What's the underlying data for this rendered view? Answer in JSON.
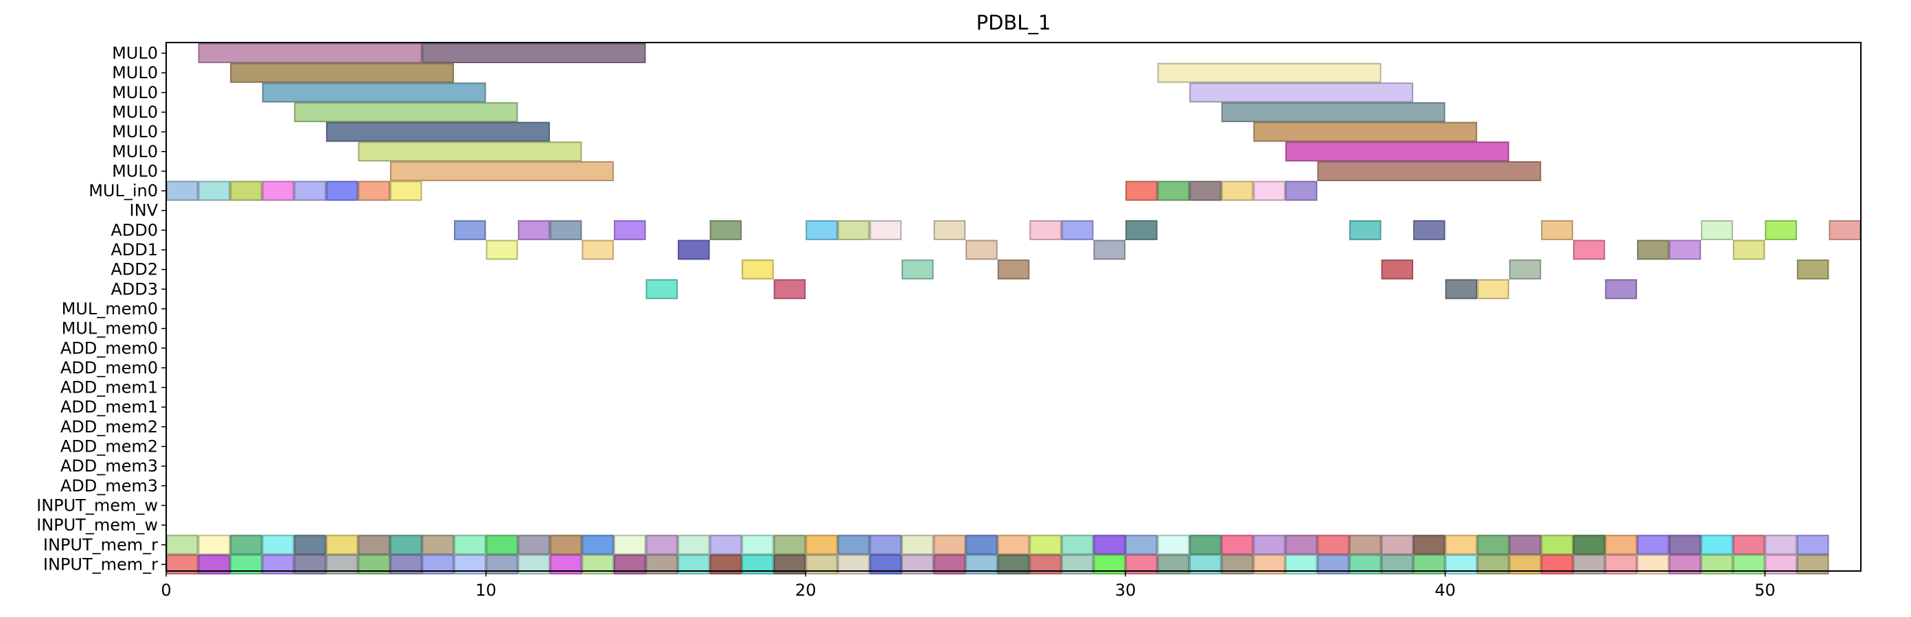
{
  "chart_data": {
    "type": "gantt",
    "title": "PDBL_1",
    "xlabel": "",
    "ylabel": "",
    "xlim": [
      0,
      53
    ],
    "xticks": [
      "0",
      "10",
      "20",
      "30",
      "40",
      "50"
    ],
    "xtick_values": [
      0,
      10,
      20,
      30,
      40,
      50
    ],
    "grid": false,
    "rows": [
      "MUL0",
      "MUL0",
      "MUL0",
      "MUL0",
      "MUL0",
      "MUL0",
      "MUL0",
      "MUL_in0",
      "INV",
      "ADD0",
      "ADD1",
      "ADD2",
      "ADD3",
      "MUL_mem0",
      "MUL_mem0",
      "ADD_mem0",
      "ADD_mem0",
      "ADD_mem1",
      "ADD_mem1",
      "ADD_mem2",
      "ADD_mem2",
      "ADD_mem3",
      "ADD_mem3",
      "INPUT_mem_w",
      "INPUT_mem_w",
      "INPUT_mem_r",
      "INPUT_mem_r"
    ],
    "tasks": [
      {
        "row": 0,
        "start": 1,
        "end": 8,
        "color": "#c594b4"
      },
      {
        "row": 0,
        "start": 8,
        "end": 15,
        "color": "#927c93"
      },
      {
        "row": 1,
        "start": 2,
        "end": 9,
        "color": "#b09a6c"
      },
      {
        "row": 2,
        "start": 3,
        "end": 10,
        "color": "#7fb1c8"
      },
      {
        "row": 3,
        "start": 4,
        "end": 11,
        "color": "#b0d896"
      },
      {
        "row": 4,
        "start": 5,
        "end": 12,
        "color": "#6c7f9c"
      },
      {
        "row": 5,
        "start": 6,
        "end": 13,
        "color": "#d2e491"
      },
      {
        "row": 6,
        "start": 7,
        "end": 14,
        "color": "#ebbe8d"
      },
      {
        "row": 1,
        "start": 31,
        "end": 38,
        "color": "#f5efc0"
      },
      {
        "row": 2,
        "start": 32,
        "end": 39,
        "color": "#d4c6f2"
      },
      {
        "row": 3,
        "start": 33,
        "end": 40,
        "color": "#8da9ad"
      },
      {
        "row": 4,
        "start": 34,
        "end": 41,
        "color": "#c9a172"
      },
      {
        "row": 5,
        "start": 35,
        "end": 42,
        "color": "#d564c0"
      },
      {
        "row": 6,
        "start": 36,
        "end": 43,
        "color": "#b88a7e"
      },
      {
        "row": 7,
        "start": 0,
        "end": 1,
        "color": "#a8c6e5"
      },
      {
        "row": 7,
        "start": 1,
        "end": 2,
        "color": "#a9e0e0"
      },
      {
        "row": 7,
        "start": 2,
        "end": 3,
        "color": "#c8db73"
      },
      {
        "row": 7,
        "start": 3,
        "end": 4,
        "color": "#f590ec"
      },
      {
        "row": 7,
        "start": 4,
        "end": 5,
        "color": "#b3b4f5"
      },
      {
        "row": 7,
        "start": 5,
        "end": 6,
        "color": "#8389f5"
      },
      {
        "row": 7,
        "start": 6,
        "end": 7,
        "color": "#f5a989"
      },
      {
        "row": 7,
        "start": 7,
        "end": 8,
        "color": "#f8ee87"
      },
      {
        "row": 7,
        "start": 30,
        "end": 31,
        "color": "#f57f73"
      },
      {
        "row": 7,
        "start": 31,
        "end": 32,
        "color": "#7fc27e"
      },
      {
        "row": 7,
        "start": 32,
        "end": 33,
        "color": "#998689"
      },
      {
        "row": 7,
        "start": 33,
        "end": 34,
        "color": "#f3dc91"
      },
      {
        "row": 7,
        "start": 34,
        "end": 35,
        "color": "#f8d2ea"
      },
      {
        "row": 7,
        "start": 35,
        "end": 36,
        "color": "#a594d8"
      },
      {
        "row": 9,
        "start": 9,
        "end": 10,
        "color": "#8ea3e3"
      },
      {
        "row": 9,
        "start": 11,
        "end": 12,
        "color": "#c293e1"
      },
      {
        "row": 9,
        "start": 12,
        "end": 13,
        "color": "#91a6bc"
      },
      {
        "row": 9,
        "start": 14,
        "end": 15,
        "color": "#b58af4"
      },
      {
        "row": 9,
        "start": 17,
        "end": 18,
        "color": "#8fa980"
      },
      {
        "row": 9,
        "start": 20,
        "end": 21,
        "color": "#82d2f3"
      },
      {
        "row": 9,
        "start": 21,
        "end": 22,
        "color": "#d5e2a6"
      },
      {
        "row": 9,
        "start": 22,
        "end": 23,
        "color": "#f7e7e9"
      },
      {
        "row": 9,
        "start": 24,
        "end": 25,
        "color": "#e9dcbf"
      },
      {
        "row": 9,
        "start": 27,
        "end": 28,
        "color": "#f8c8d9"
      },
      {
        "row": 9,
        "start": 28,
        "end": 29,
        "color": "#a4aaf3"
      },
      {
        "row": 9,
        "start": 30,
        "end": 31,
        "color": "#6a9191"
      },
      {
        "row": 9,
        "start": 37,
        "end": 38,
        "color": "#6ccbc7"
      },
      {
        "row": 9,
        "start": 39,
        "end": 40,
        "color": "#7b7fb0"
      },
      {
        "row": 9,
        "start": 43,
        "end": 44,
        "color": "#f0c88f"
      },
      {
        "row": 9,
        "start": 48,
        "end": 49,
        "color": "#d6f5cd"
      },
      {
        "row": 9,
        "start": 50,
        "end": 51,
        "color": "#adf068"
      },
      {
        "row": 9,
        "start": 52,
        "end": 53,
        "color": "#eaa9a3"
      },
      {
        "row": 10,
        "start": 10,
        "end": 11,
        "color": "#eef59a"
      },
      {
        "row": 10,
        "start": 13,
        "end": 14,
        "color": "#f8dc9c"
      },
      {
        "row": 10,
        "start": 16,
        "end": 17,
        "color": "#6f6dc0"
      },
      {
        "row": 10,
        "start": 25,
        "end": 26,
        "color": "#e7cab2"
      },
      {
        "row": 10,
        "start": 29,
        "end": 30,
        "color": "#abb0c3"
      },
      {
        "row": 10,
        "start": 44,
        "end": 45,
        "color": "#f48caa"
      },
      {
        "row": 10,
        "start": 46,
        "end": 47,
        "color": "#a2a17a"
      },
      {
        "row": 10,
        "start": 47,
        "end": 48,
        "color": "#c99ae4"
      },
      {
        "row": 10,
        "start": 49,
        "end": 50,
        "color": "#e3e68e"
      },
      {
        "row": 11,
        "start": 18,
        "end": 19,
        "color": "#f8e879"
      },
      {
        "row": 11,
        "start": 23,
        "end": 24,
        "color": "#a0d8be"
      },
      {
        "row": 11,
        "start": 26,
        "end": 27,
        "color": "#b99a7d"
      },
      {
        "row": 11,
        "start": 38,
        "end": 39,
        "color": "#cd6c73"
      },
      {
        "row": 11,
        "start": 42,
        "end": 43,
        "color": "#b0c3b0"
      },
      {
        "row": 11,
        "start": 51,
        "end": 52,
        "color": "#b2ad73"
      },
      {
        "row": 12,
        "start": 15,
        "end": 16,
        "color": "#71e7cf"
      },
      {
        "row": 12,
        "start": 19,
        "end": 20,
        "color": "#d77089"
      },
      {
        "row": 12,
        "start": 40,
        "end": 41,
        "color": "#7c8790"
      },
      {
        "row": 12,
        "start": 41,
        "end": 42,
        "color": "#f5e095"
      },
      {
        "row": 12,
        "start": 45,
        "end": 46,
        "color": "#a98dce"
      },
      {
        "row": 25,
        "start": 0,
        "end": 1,
        "color": "#c4e6a8"
      },
      {
        "row": 25,
        "start": 1,
        "end": 2,
        "color": "#fef9c2"
      },
      {
        "row": 25,
        "start": 2,
        "end": 3,
        "color": "#6dc08f"
      },
      {
        "row": 25,
        "start": 3,
        "end": 4,
        "color": "#8ff1f0"
      },
      {
        "row": 25,
        "start": 4,
        "end": 5,
        "color": "#6e8499"
      },
      {
        "row": 25,
        "start": 5,
        "end": 6,
        "color": "#eddb77"
      },
      {
        "row": 25,
        "start": 6,
        "end": 7,
        "color": "#a9998b"
      },
      {
        "row": 25,
        "start": 7,
        "end": 8,
        "color": "#63b8a7"
      },
      {
        "row": 25,
        "start": 8,
        "end": 9,
        "color": "#bbac92"
      },
      {
        "row": 25,
        "start": 9,
        "end": 10,
        "color": "#99f3c6"
      },
      {
        "row": 25,
        "start": 10,
        "end": 11,
        "color": "#64e077"
      },
      {
        "row": 25,
        "start": 11,
        "end": 12,
        "color": "#a5a1b4"
      },
      {
        "row": 25,
        "start": 12,
        "end": 13,
        "color": "#c09a70"
      },
      {
        "row": 25,
        "start": 13,
        "end": 14,
        "color": "#6c9de8"
      },
      {
        "row": 25,
        "start": 14,
        "end": 15,
        "color": "#eafad9"
      },
      {
        "row": 25,
        "start": 15,
        "end": 16,
        "color": "#c9a6d7"
      },
      {
        "row": 25,
        "start": 16,
        "end": 17,
        "color": "#cdf0da"
      },
      {
        "row": 25,
        "start": 17,
        "end": 18,
        "color": "#c0b7f1"
      },
      {
        "row": 25,
        "start": 18,
        "end": 19,
        "color": "#befae4"
      },
      {
        "row": 25,
        "start": 19,
        "end": 20,
        "color": "#a8c18a"
      },
      {
        "row": 25,
        "start": 20,
        "end": 21,
        "color": "#f4c16a"
      },
      {
        "row": 25,
        "start": 21,
        "end": 22,
        "color": "#7fa4d4"
      },
      {
        "row": 25,
        "start": 22,
        "end": 23,
        "color": "#95a0e6"
      },
      {
        "row": 25,
        "start": 23,
        "end": 24,
        "color": "#e4edc8"
      },
      {
        "row": 25,
        "start": 24,
        "end": 25,
        "color": "#edbd9c"
      },
      {
        "row": 25,
        "start": 25,
        "end": 26,
        "color": "#6f8fd3"
      },
      {
        "row": 25,
        "start": 26,
        "end": 27,
        "color": "#f6c094"
      },
      {
        "row": 25,
        "start": 27,
        "end": 28,
        "color": "#d6f07a"
      },
      {
        "row": 25,
        "start": 28,
        "end": 29,
        "color": "#97e6c9"
      },
      {
        "row": 25,
        "start": 29,
        "end": 30,
        "color": "#9867ea"
      },
      {
        "row": 25,
        "start": 30,
        "end": 31,
        "color": "#95b3df"
      },
      {
        "row": 25,
        "start": 31,
        "end": 32,
        "color": "#d9fbf6"
      },
      {
        "row": 25,
        "start": 32,
        "end": 33,
        "color": "#65ae84"
      },
      {
        "row": 25,
        "start": 33,
        "end": 34,
        "color": "#f6799e"
      },
      {
        "row": 25,
        "start": 34,
        "end": 35,
        "color": "#c5a0e1"
      },
      {
        "row": 25,
        "start": 35,
        "end": 36,
        "color": "#c086c0"
      },
      {
        "row": 25,
        "start": 36,
        "end": 37,
        "color": "#f27e88"
      },
      {
        "row": 25,
        "start": 37,
        "end": 38,
        "color": "#c5a392"
      },
      {
        "row": 25,
        "start": 38,
        "end": 39,
        "color": "#d2aeb4"
      },
      {
        "row": 25,
        "start": 39,
        "end": 40,
        "color": "#8f6e62"
      },
      {
        "row": 25,
        "start": 40,
        "end": 41,
        "color": "#f9d187"
      },
      {
        "row": 25,
        "start": 41,
        "end": 42,
        "color": "#7ab77e"
      },
      {
        "row": 25,
        "start": 42,
        "end": 43,
        "color": "#a77ca2"
      },
      {
        "row": 25,
        "start": 43,
        "end": 44,
        "color": "#b5e66a"
      },
      {
        "row": 25,
        "start": 44,
        "end": 45,
        "color": "#5c8e5c"
      },
      {
        "row": 25,
        "start": 45,
        "end": 46,
        "color": "#f5b57f"
      },
      {
        "row": 25,
        "start": 46,
        "end": 47,
        "color": "#9f8bf5"
      },
      {
        "row": 25,
        "start": 47,
        "end": 48,
        "color": "#8e76b0"
      },
      {
        "row": 25,
        "start": 48,
        "end": 49,
        "color": "#6ee8f4"
      },
      {
        "row": 25,
        "start": 49,
        "end": 50,
        "color": "#ee8098"
      },
      {
        "row": 25,
        "start": 50,
        "end": 51,
        "color": "#dcc1e8"
      },
      {
        "row": 25,
        "start": 51,
        "end": 52,
        "color": "#a6a6f2"
      },
      {
        "row": 26,
        "start": 0,
        "end": 1,
        "color": "#ee8484"
      },
      {
        "row": 26,
        "start": 1,
        "end": 2,
        "color": "#c062d9"
      },
      {
        "row": 26,
        "start": 2,
        "end": 3,
        "color": "#6cec9a"
      },
      {
        "row": 26,
        "start": 3,
        "end": 4,
        "color": "#ab97f5"
      },
      {
        "row": 26,
        "start": 4,
        "end": 5,
        "color": "#8d8baa"
      },
      {
        "row": 26,
        "start": 5,
        "end": 6,
        "color": "#b2bbb9"
      },
      {
        "row": 26,
        "start": 6,
        "end": 7,
        "color": "#8dc883"
      },
      {
        "row": 26,
        "start": 7,
        "end": 8,
        "color": "#8f8fc1"
      },
      {
        "row": 26,
        "start": 8,
        "end": 9,
        "color": "#a3a9ef"
      },
      {
        "row": 26,
        "start": 9,
        "end": 10,
        "color": "#b6c9f8"
      },
      {
        "row": 26,
        "start": 10,
        "end": 11,
        "color": "#9ca9c7"
      },
      {
        "row": 26,
        "start": 11,
        "end": 12,
        "color": "#bde4df"
      },
      {
        "row": 26,
        "start": 12,
        "end": 13,
        "color": "#de6fe7"
      },
      {
        "row": 26,
        "start": 13,
        "end": 14,
        "color": "#bee9a0"
      },
      {
        "row": 26,
        "start": 14,
        "end": 15,
        "color": "#b0699d"
      },
      {
        "row": 26,
        "start": 15,
        "end": 16,
        "color": "#b3a499"
      },
      {
        "row": 26,
        "start": 16,
        "end": 17,
        "color": "#8ae6d8"
      },
      {
        "row": 26,
        "start": 17,
        "end": 18,
        "color": "#a56659"
      },
      {
        "row": 26,
        "start": 18,
        "end": 19,
        "color": "#5fe1d6"
      },
      {
        "row": 26,
        "start": 19,
        "end": 20,
        "color": "#826e62"
      },
      {
        "row": 26,
        "start": 20,
        "end": 21,
        "color": "#d6cfa0"
      },
      {
        "row": 26,
        "start": 21,
        "end": 22,
        "color": "#e1dcc8"
      },
      {
        "row": 26,
        "start": 22,
        "end": 23,
        "color": "#6c79d9"
      },
      {
        "row": 26,
        "start": 23,
        "end": 24,
        "color": "#cebad2"
      },
      {
        "row": 26,
        "start": 24,
        "end": 25,
        "color": "#bf6c98"
      },
      {
        "row": 26,
        "start": 25,
        "end": 26,
        "color": "#97c5dd"
      },
      {
        "row": 26,
        "start": 26,
        "end": 27,
        "color": "#6d856e"
      },
      {
        "row": 26,
        "start": 27,
        "end": 28,
        "color": "#d77c79"
      },
      {
        "row": 26,
        "start": 28,
        "end": 29,
        "color": "#a9d4c4"
      },
      {
        "row": 26,
        "start": 29,
        "end": 30,
        "color": "#76f364"
      },
      {
        "row": 26,
        "start": 30,
        "end": 31,
        "color": "#f0829e"
      },
      {
        "row": 26,
        "start": 31,
        "end": 32,
        "color": "#90b2a0"
      },
      {
        "row": 26,
        "start": 32,
        "end": 33,
        "color": "#89ded9"
      },
      {
        "row": 26,
        "start": 33,
        "end": 34,
        "color": "#ada28c"
      },
      {
        "row": 26,
        "start": 34,
        "end": 35,
        "color": "#f6c5a1"
      },
      {
        "row": 26,
        "start": 35,
        "end": 36,
        "color": "#a3f6e4"
      },
      {
        "row": 26,
        "start": 36,
        "end": 37,
        "color": "#91a8e1"
      },
      {
        "row": 26,
        "start": 37,
        "end": 38,
        "color": "#7bdcb0"
      },
      {
        "row": 26,
        "start": 38,
        "end": 39,
        "color": "#8cbcab"
      },
      {
        "row": 26,
        "start": 39,
        "end": 40,
        "color": "#7ed88d"
      },
      {
        "row": 26,
        "start": 40,
        "end": 41,
        "color": "#9ff4f3"
      },
      {
        "row": 26,
        "start": 41,
        "end": 42,
        "color": "#a6bd80"
      },
      {
        "row": 26,
        "start": 42,
        "end": 43,
        "color": "#e8c06c"
      },
      {
        "row": 26,
        "start": 43,
        "end": 44,
        "color": "#f96e6e"
      },
      {
        "row": 26,
        "start": 44,
        "end": 45,
        "color": "#bdb1b1"
      },
      {
        "row": 26,
        "start": 45,
        "end": 46,
        "color": "#f7abb0"
      },
      {
        "row": 26,
        "start": 46,
        "end": 47,
        "color": "#fee3c2"
      },
      {
        "row": 26,
        "start": 47,
        "end": 48,
        "color": "#d58cc6"
      },
      {
        "row": 26,
        "start": 48,
        "end": 49,
        "color": "#b3e894"
      },
      {
        "row": 26,
        "start": 49,
        "end": 50,
        "color": "#9ef095"
      },
      {
        "row": 26,
        "start": 50,
        "end": 51,
        "color": "#f2bde4"
      },
      {
        "row": 26,
        "start": 51,
        "end": 52,
        "color": "#beb08a"
      }
    ]
  }
}
